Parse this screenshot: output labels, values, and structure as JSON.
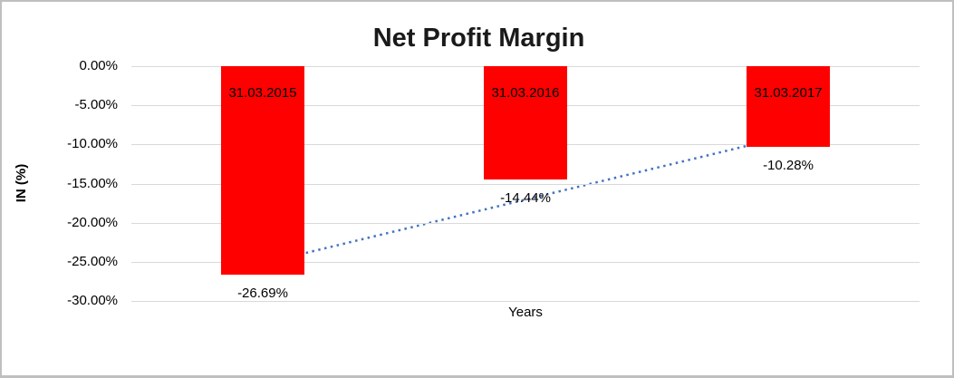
{
  "window": {
    "background": "#ffffff",
    "border_color": "#bfbfbf"
  },
  "chart_data": {
    "type": "bar",
    "title": "Net Profit Margin",
    "xlabel": "Years",
    "ylabel": "IN (%)",
    "categories": [
      "31.03.2015",
      "31.03.2016",
      "31.03.2017"
    ],
    "values": [
      -26.69,
      -14.44,
      -10.28
    ],
    "value_labels": [
      "-26.69%",
      "-14.44%",
      "-10.28%"
    ],
    "y_ticks": [
      0,
      -5,
      -10,
      -15,
      -20,
      -25,
      -30
    ],
    "y_tick_labels": [
      "0.00%",
      "-5.00%",
      "-10.00%",
      "-15.00%",
      "-20.00%",
      "-25.00%",
      "-30.00%"
    ],
    "ylim": [
      -30,
      0
    ],
    "grid": true,
    "legend": "none",
    "bar_color": "#ff0000",
    "gridline_color": "#d9d9d9",
    "label_color": "#000000",
    "trendline": {
      "style": "dotted",
      "color": "#4472c4",
      "start_value": -25.2,
      "end_value": -8.9
    }
  }
}
